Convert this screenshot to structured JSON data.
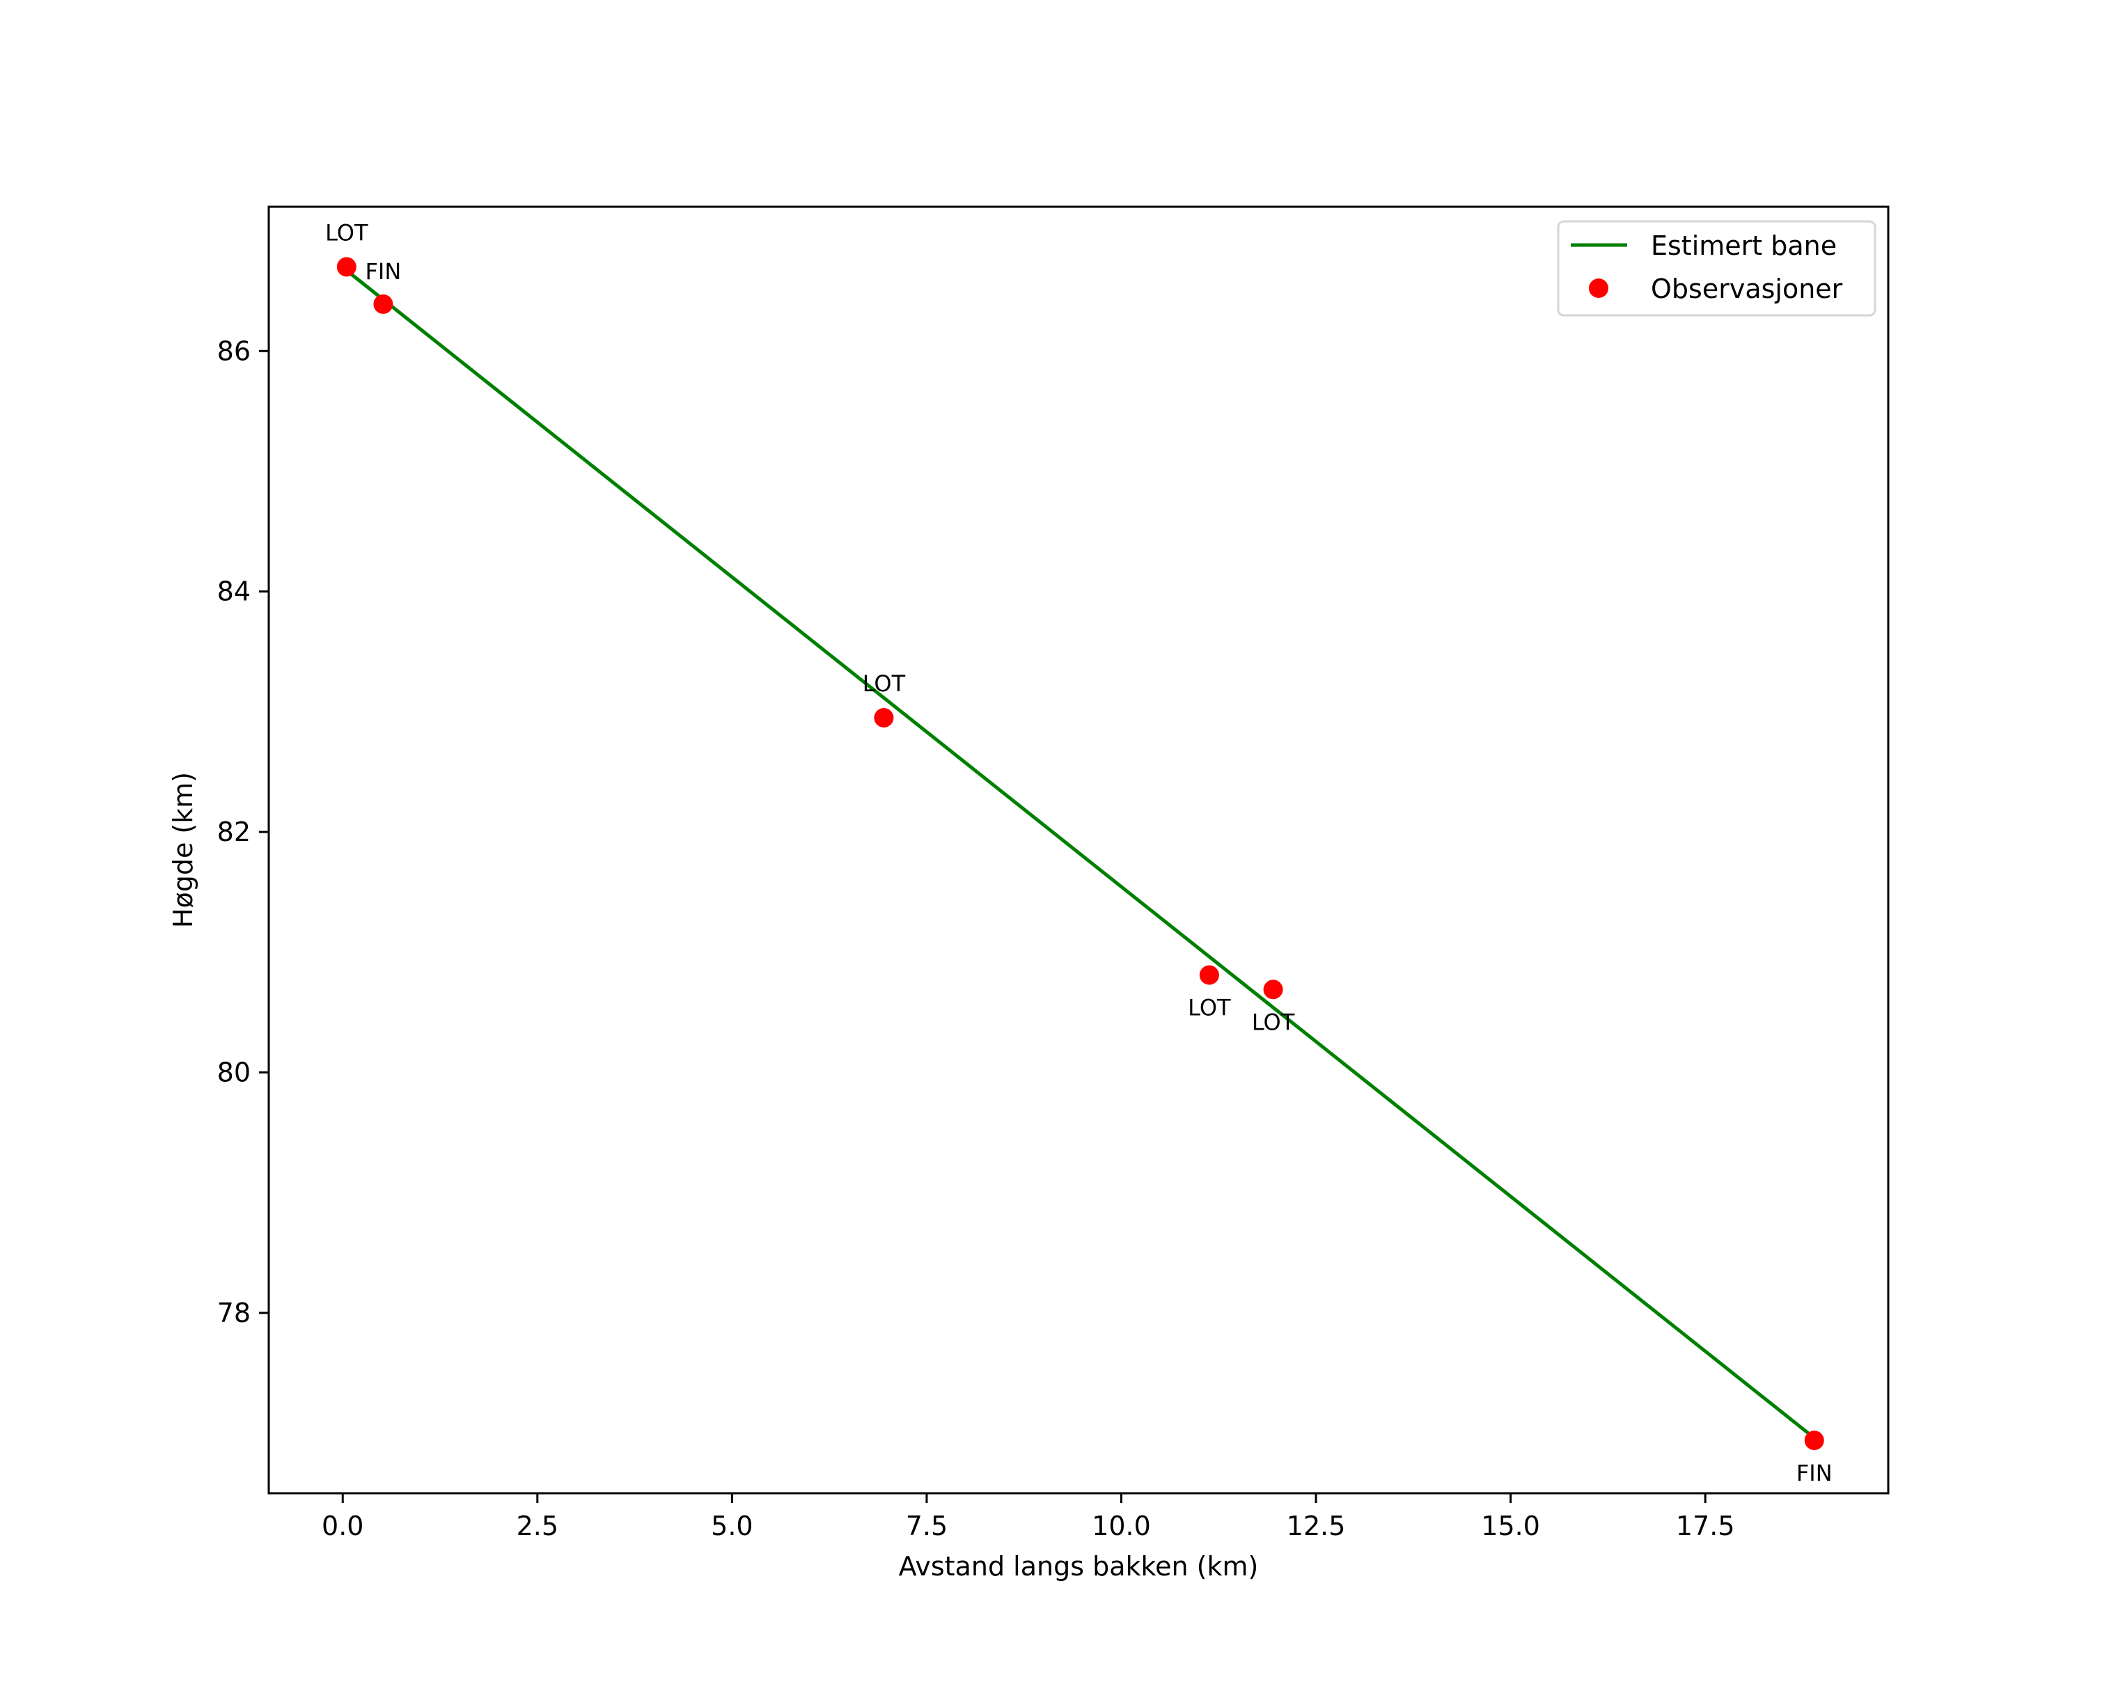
{
  "chart_data": {
    "type": "line+scatter",
    "title": "",
    "xlabel": "Avstand langs bakken (km)",
    "ylabel": "Høgde (km)",
    "xlim": [
      -0.95,
      19.85
    ],
    "ylim": [
      76.5,
      87.2
    ],
    "xticks": [
      0.0,
      2.5,
      5.0,
      7.5,
      10.0,
      12.5,
      15.0,
      17.5
    ],
    "xtick_labels": [
      "0.0",
      "2.5",
      "5.0",
      "7.5",
      "10.0",
      "12.5",
      "15.0",
      "17.5"
    ],
    "yticks": [
      78,
      80,
      82,
      84,
      86
    ],
    "ytick_labels": [
      "78",
      "80",
      "82",
      "84",
      "86"
    ],
    "grid": false,
    "legend_position": "upper right",
    "series": [
      {
        "name": "Estimert bane",
        "type": "line",
        "color": "#008000",
        "x": [
          0.05,
          18.9
        ],
        "y": [
          86.67,
          76.96
        ]
      },
      {
        "name": "Observasjoner",
        "type": "scatter",
        "color": "#ff0000",
        "x": [
          0.05,
          0.52,
          6.95,
          11.13,
          11.95,
          18.9
        ],
        "y": [
          86.7,
          86.39,
          82.95,
          80.81,
          80.69,
          76.94
        ],
        "labels": [
          "LOT",
          "FIN",
          "LOT",
          "LOT",
          "LOT",
          "FIN"
        ]
      }
    ],
    "annotations": [
      {
        "text": "LOT",
        "x": 0.05,
        "y": 86.7,
        "position": "above"
      },
      {
        "text": "FIN",
        "x": 0.52,
        "y": 86.39,
        "position": "above"
      },
      {
        "text": "LOT",
        "x": 6.95,
        "y": 82.95,
        "position": "above"
      },
      {
        "text": "LOT",
        "x": 11.13,
        "y": 80.81,
        "position": "below"
      },
      {
        "text": "LOT",
        "x": 11.95,
        "y": 80.69,
        "position": "below"
      },
      {
        "text": "FIN",
        "x": 18.9,
        "y": 76.94,
        "position": "below"
      }
    ]
  },
  "legend": {
    "items": [
      {
        "label": "Estimert bane",
        "marker": "line",
        "color": "#008000"
      },
      {
        "label": "Observasjoner",
        "marker": "dot",
        "color": "#ff0000"
      }
    ]
  }
}
